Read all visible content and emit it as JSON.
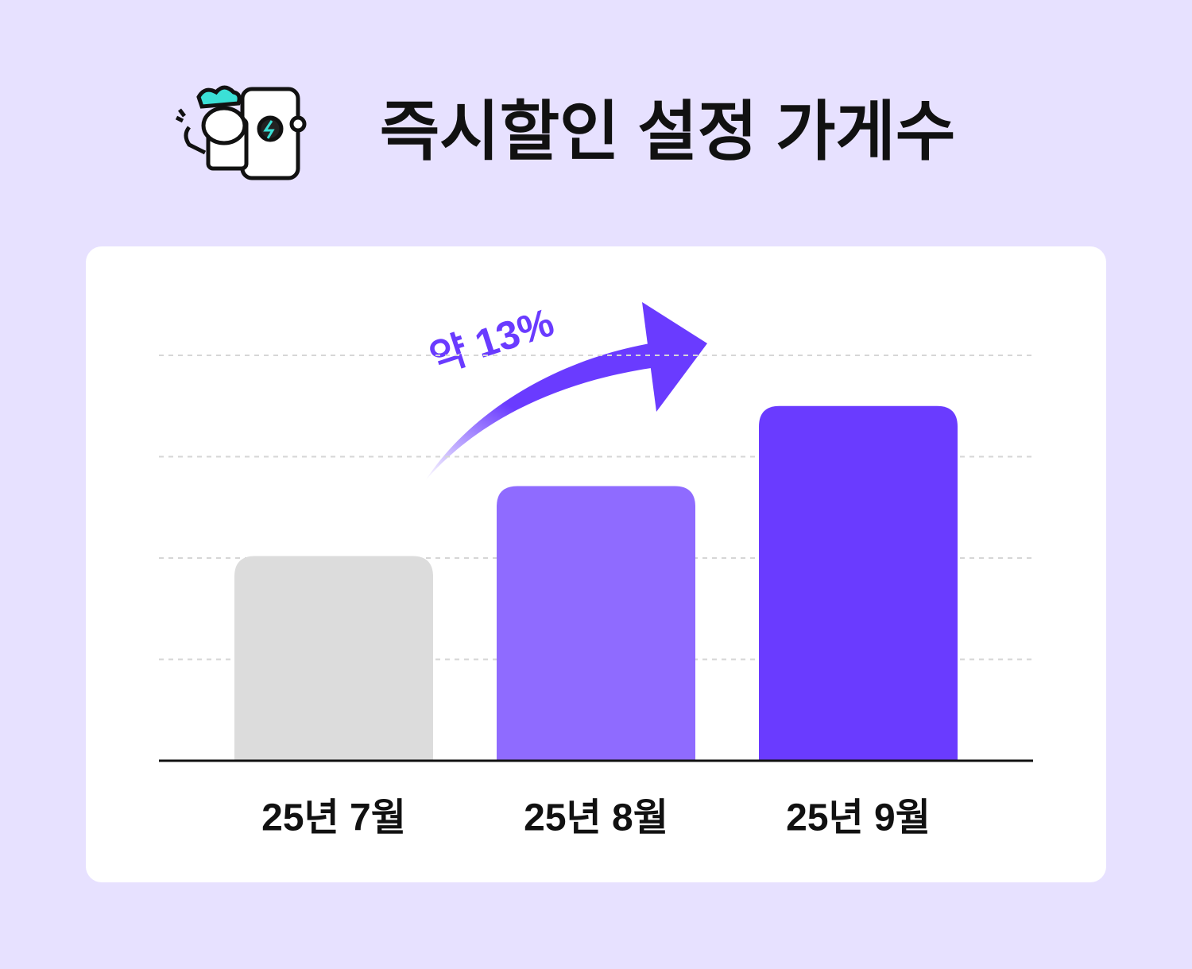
{
  "chart_data": {
    "type": "bar",
    "title": "즉시할인 설정 가게수",
    "annotation": "약 13%",
    "categories": [
      "25년 7월",
      "25년 8월",
      "25년 9월"
    ],
    "values": [
      2.02,
      2.71,
      3.5
    ],
    "colors": [
      "#dcdcdc",
      "#8f6bff",
      "#6a3bff"
    ],
    "ylim": [
      0,
      4
    ],
    "yticks": [
      1,
      2,
      3,
      4
    ],
    "grid": true
  }
}
